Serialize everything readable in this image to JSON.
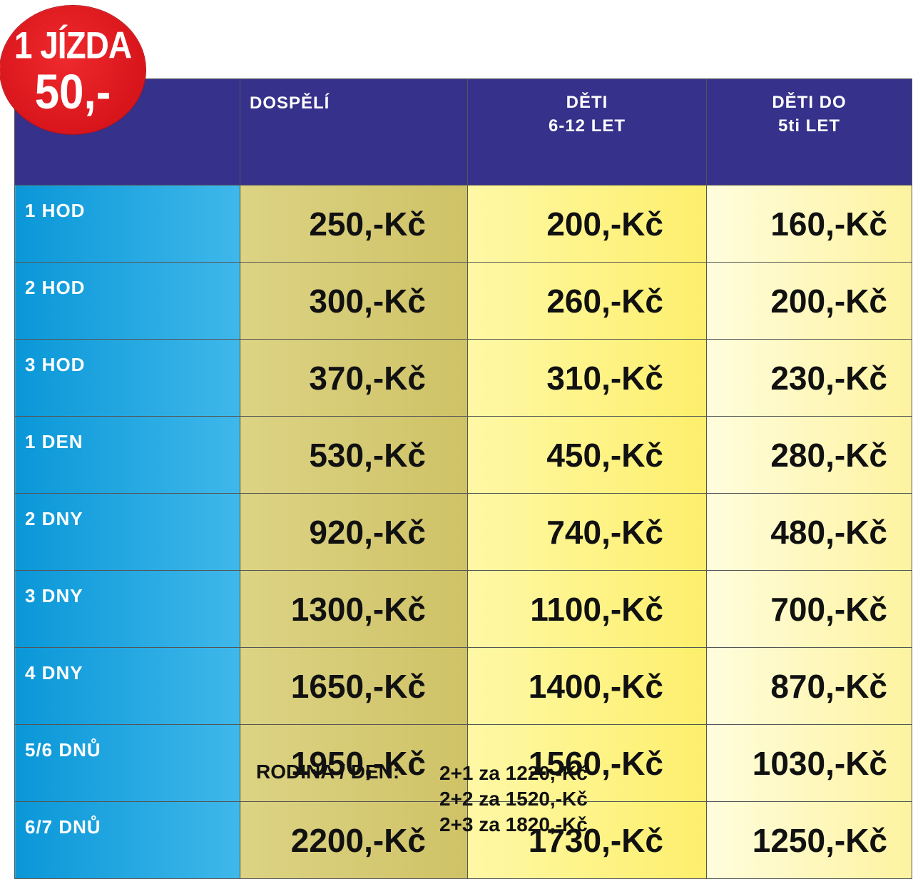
{
  "badge": {
    "line1": "1 JÍZDA",
    "line2": "50,-"
  },
  "table": {
    "headers": {
      "adults": "DOSPĚLÍ",
      "kids_line1": "DĚTI",
      "kids_line2": "6-12 LET",
      "small_line1": "DĚTI DO",
      "small_line2": "5ti LET"
    },
    "rows": [
      {
        "label": "1 HOD",
        "adults": "250,-Kč",
        "kids": "200,-Kč",
        "small": "160,-Kč"
      },
      {
        "label": "2 HOD",
        "adults": "300,-Kč",
        "kids": "260,-Kč",
        "small": "200,-Kč"
      },
      {
        "label": "3 HOD",
        "adults": "370,-Kč",
        "kids": "310,-Kč",
        "small": "230,-Kč"
      },
      {
        "label": "1 DEN",
        "adults": "530,-Kč",
        "kids": "450,-Kč",
        "small": "280,-Kč"
      },
      {
        "label": "2 DNY",
        "adults": "920,-Kč",
        "kids": "740,-Kč",
        "small": "480,-Kč"
      },
      {
        "label": "3 DNY",
        "adults": "1300,-Kč",
        "kids": "1100,-Kč",
        "small": "700,-Kč"
      },
      {
        "label": "4 DNY",
        "adults": "1650,-Kč",
        "kids": "1400,-Kč",
        "small": "870,-Kč"
      },
      {
        "label": "5/6 DNŮ",
        "adults": "1950,-Kč",
        "kids": "1560,-Kč",
        "small": "1030,-Kč"
      },
      {
        "label": "6/7 DNŮ",
        "adults": "2200,-Kč",
        "kids": "1730,-Kč",
        "small": "1250,-Kč"
      }
    ]
  },
  "family": {
    "label": "RODINA / DEN:",
    "options": [
      "2+1 za 1220,-Kč",
      "2+2 za 1520,-Kč",
      "2+3 za 1820,-Kč"
    ]
  },
  "colors": {
    "header_bg": "#36318a",
    "label_bg": "#0a97d8",
    "adult_bg": "#d6ca74",
    "kids_bg": "#fdf387",
    "small_bg": "#fff9c4",
    "badge_bg": "#e31e24"
  }
}
